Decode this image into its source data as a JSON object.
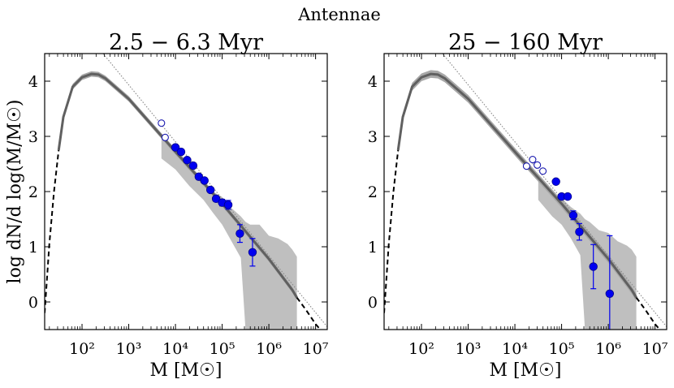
{
  "suptitle": "Antennae",
  "ylabel": "log dN/d log(M/M☉)",
  "chart_data": [
    {
      "type": "line",
      "title": "2.5 − 6.3 Myr",
      "xlabel": "M [M☉]",
      "ylabel": "log dN/d log(M/M☉)",
      "xscale": "log",
      "xlim_log10": [
        1.2,
        7.25
      ],
      "ylim": [
        -0.5,
        4.5
      ],
      "xticks_log10": [
        2,
        3,
        4,
        5,
        6,
        7
      ],
      "xtick_labels": [
        "10²",
        "10³",
        "10⁴",
        "10⁵",
        "10⁶",
        "10⁷"
      ],
      "yticks": [
        0,
        1,
        2,
        3,
        4
      ],
      "model_curve": {
        "solid_log10M": [
          1.5,
          1.6,
          1.8,
          2.0,
          2.2,
          2.35,
          2.5,
          3.0,
          3.5,
          4.0,
          4.5,
          5.0,
          5.5,
          6.0,
          6.5,
          6.6
        ],
        "solid_y": [
          2.75,
          3.35,
          3.9,
          4.07,
          4.13,
          4.12,
          4.05,
          3.68,
          3.2,
          2.72,
          2.25,
          1.78,
          1.28,
          0.78,
          0.22,
          0.08
        ],
        "dashed_log10M": [
          1.2,
          1.3,
          1.4,
          1.5
        ],
        "dashed_y": [
          -0.2,
          1.05,
          2.0,
          2.75
        ],
        "dashed_tail_log10M": [
          6.6,
          6.8,
          7.0,
          7.1
        ],
        "dashed_tail_y": [
          0.08,
          -0.15,
          -0.4,
          -0.5
        ]
      },
      "model_band_halfwidth": 0.05,
      "powerlaw_line": {
        "log10M": [
          2.45,
          7.25
        ],
        "y": [
          4.5,
          -0.45
        ]
      },
      "completeness_band": {
        "log10M": [
          3.7,
          4.0,
          4.3,
          4.6,
          4.8,
          5.0,
          5.2,
          5.4,
          5.5,
          5.6,
          5.8,
          6.0,
          6.2,
          6.4,
          6.5,
          6.6
        ],
        "upper": [
          3.0,
          2.78,
          2.5,
          2.2,
          2.0,
          1.9,
          1.7,
          1.55,
          1.45,
          1.4,
          1.4,
          1.2,
          1.15,
          1.05,
          0.95,
          0.82
        ],
        "lower": [
          2.6,
          2.4,
          2.1,
          1.85,
          1.62,
          1.4,
          1.1,
          0.8,
          -0.5,
          -0.5,
          -0.5,
          -0.5,
          -0.5,
          -0.5,
          -0.5,
          -0.5
        ]
      },
      "filled_points": [
        {
          "x": 4.0,
          "y": 2.8,
          "err": 0.03
        },
        {
          "x": 4.12,
          "y": 2.72,
          "err": 0.03
        },
        {
          "x": 4.25,
          "y": 2.57,
          "err": 0.03
        },
        {
          "x": 4.38,
          "y": 2.47,
          "err": 0.03
        },
        {
          "x": 4.5,
          "y": 2.27,
          "err": 0.03
        },
        {
          "x": 4.62,
          "y": 2.2,
          "err": 0.04
        },
        {
          "x": 4.75,
          "y": 2.03,
          "err": 0.04
        },
        {
          "x": 4.87,
          "y": 1.87,
          "err": 0.05
        },
        {
          "x": 5.0,
          "y": 1.8,
          "err": 0.06
        },
        {
          "x": 5.13,
          "y": 1.76,
          "err": 0.08
        },
        {
          "x": 5.38,
          "y": 1.24,
          "err": 0.16
        },
        {
          "x": 5.65,
          "y": 0.9,
          "err": 0.25
        }
      ],
      "open_points": [
        {
          "x": 3.7,
          "y": 3.24,
          "err": 0.03
        },
        {
          "x": 3.78,
          "y": 2.98,
          "err": 0.03
        }
      ]
    },
    {
      "type": "line",
      "title": "25 − 160 Myr",
      "xlabel": "M [M☉]",
      "ylabel": "",
      "xscale": "log",
      "xlim_log10": [
        1.2,
        7.25
      ],
      "ylim": [
        -0.5,
        4.5
      ],
      "xticks_log10": [
        2,
        3,
        4,
        5,
        6,
        7
      ],
      "xtick_labels": [
        "10²",
        "10³",
        "10⁴",
        "10⁵",
        "10⁶",
        "10⁷"
      ],
      "yticks": [
        0,
        1,
        2,
        3,
        4
      ],
      "model_curve": {
        "solid_log10M": [
          1.5,
          1.6,
          1.8,
          2.0,
          2.2,
          2.35,
          2.5,
          3.0,
          3.5,
          4.0,
          4.5,
          5.0,
          5.5,
          6.0,
          6.5,
          6.6
        ],
        "solid_y": [
          2.75,
          3.35,
          3.9,
          4.07,
          4.13,
          4.12,
          4.05,
          3.68,
          3.2,
          2.72,
          2.25,
          1.78,
          1.28,
          0.78,
          0.22,
          0.08
        ],
        "dashed_log10M": [
          1.2,
          1.3,
          1.4,
          1.5
        ],
        "dashed_y": [
          -0.2,
          1.05,
          2.0,
          2.75
        ],
        "dashed_tail_log10M": [
          6.6,
          6.8,
          7.0,
          7.1
        ],
        "dashed_tail_y": [
          0.08,
          -0.15,
          -0.4,
          -0.5
        ]
      },
      "model_band_halfwidth": 0.07,
      "powerlaw_line": {
        "log10M": [
          2.45,
          7.25
        ],
        "y": [
          4.5,
          -0.45
        ]
      },
      "completeness_band": {
        "log10M": [
          4.5,
          4.8,
          5.0,
          5.2,
          5.4,
          5.5,
          5.6,
          5.8,
          6.0,
          6.2,
          6.4,
          6.5,
          6.6
        ],
        "upper": [
          2.2,
          2.0,
          1.88,
          1.72,
          1.6,
          1.5,
          1.45,
          1.3,
          1.25,
          1.1,
          1.02,
          0.95,
          0.82
        ],
        "lower": [
          1.85,
          1.55,
          1.4,
          1.15,
          0.85,
          -0.5,
          -0.5,
          -0.5,
          -0.5,
          -0.5,
          -0.5,
          -0.5,
          -0.5
        ]
      },
      "filled_points": [
        {
          "x": 4.88,
          "y": 2.18,
          "err": 0.03
        },
        {
          "x": 5.0,
          "y": 1.91,
          "err": 0.04
        },
        {
          "x": 5.13,
          "y": 1.91,
          "err": 0.05
        },
        {
          "x": 5.25,
          "y": 1.57,
          "err": 0.08
        },
        {
          "x": 5.38,
          "y": 1.27,
          "err": 0.15
        },
        {
          "x": 5.68,
          "y": 0.64,
          "err": 0.4
        },
        {
          "x": 6.03,
          "y": 0.15,
          "err": 1.05
        }
      ],
      "open_points": [
        {
          "x": 4.25,
          "y": 2.46,
          "err": 0.03
        },
        {
          "x": 4.38,
          "y": 2.58,
          "err": 0.03
        },
        {
          "x": 4.48,
          "y": 2.48,
          "err": 0.03
        },
        {
          "x": 4.6,
          "y": 2.37,
          "err": 0.03
        }
      ]
    }
  ]
}
